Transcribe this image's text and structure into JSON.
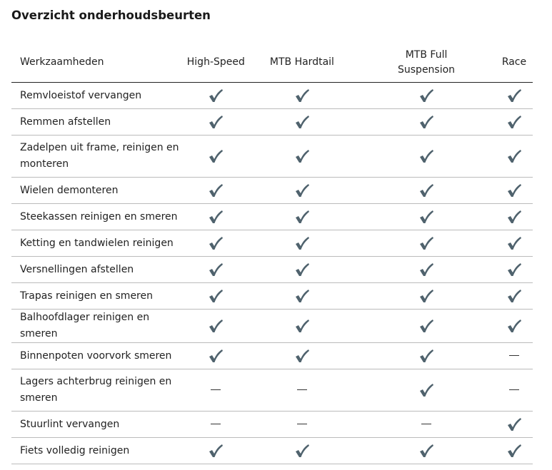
{
  "title": "Overzicht onderhoudsbeurten",
  "columns": [
    "Werkzaamheden",
    "High-Speed",
    "MTB Hardtail",
    "MTB Full Suspension",
    "Race"
  ],
  "check_color": "#4f626d",
  "rows": [
    {
      "task": "Remvloeistof vervangen",
      "values": [
        true,
        true,
        true,
        true
      ]
    },
    {
      "task": "Remmen afstellen",
      "values": [
        true,
        true,
        true,
        true
      ]
    },
    {
      "task": "Zadelpen uit frame, reinigen en monteren",
      "values": [
        true,
        true,
        true,
        true
      ]
    },
    {
      "task": "Wielen demonteren",
      "values": [
        true,
        true,
        true,
        true
      ]
    },
    {
      "task": "Steekassen reinigen en smeren",
      "values": [
        true,
        true,
        true,
        true
      ]
    },
    {
      "task": "Ketting en tandwielen reinigen",
      "values": [
        true,
        true,
        true,
        true
      ]
    },
    {
      "task": "Versnellingen afstellen",
      "values": [
        true,
        true,
        true,
        true
      ]
    },
    {
      "task": "Trapas reinigen en smeren",
      "values": [
        true,
        true,
        true,
        true
      ]
    },
    {
      "task": "Balhoofdlager reinigen en smeren",
      "values": [
        true,
        true,
        true,
        true
      ]
    },
    {
      "task": "Binnenpoten voorvork smeren",
      "values": [
        true,
        true,
        true,
        false
      ]
    },
    {
      "task": "Lagers achterbrug reinigen en smeren",
      "values": [
        false,
        false,
        true,
        false
      ]
    },
    {
      "task": "Stuurlint vervangen",
      "values": [
        false,
        false,
        false,
        true
      ]
    },
    {
      "task": "Fiets volledig reinigen",
      "values": [
        true,
        true,
        true,
        true
      ]
    }
  ]
}
